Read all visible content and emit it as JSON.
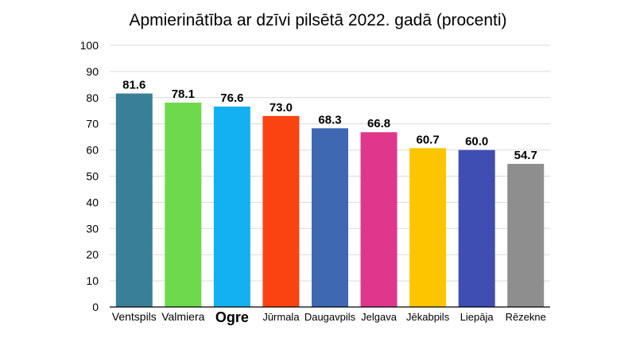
{
  "chart_data": {
    "type": "bar",
    "title": "Apmierinātība ar dzīvi pilsētā 2022. gadā (procenti)",
    "categories": [
      "Ventspils",
      "Valmiera",
      "Ogre",
      "Jūrmala",
      "Daugavpils",
      "Jelgava",
      "Jēkabpils",
      "Liepāja",
      "Rēzekne"
    ],
    "values": [
      81.6,
      78.1,
      76.6,
      73.0,
      68.3,
      66.8,
      60.7,
      60.0,
      54.7
    ],
    "value_labels": [
      "81.6",
      "78.1",
      "76.6",
      "73.0",
      "68.3",
      "66.8",
      "60.7",
      "60.0",
      "54.7"
    ],
    "colors": [
      "#3a7f98",
      "#6fd94d",
      "#13b1f2",
      "#fb4312",
      "#3f68b3",
      "#e0378a",
      "#fdc500",
      "#3f4eb3",
      "#8e8e8e"
    ],
    "highlight_category": "Ogre",
    "yticks": [
      "0",
      "10",
      "20",
      "30",
      "40",
      "50",
      "60",
      "70",
      "80",
      "90",
      "100"
    ],
    "ylim": [
      0,
      100
    ],
    "grid": true,
    "xlabel": "",
    "ylabel": ""
  }
}
